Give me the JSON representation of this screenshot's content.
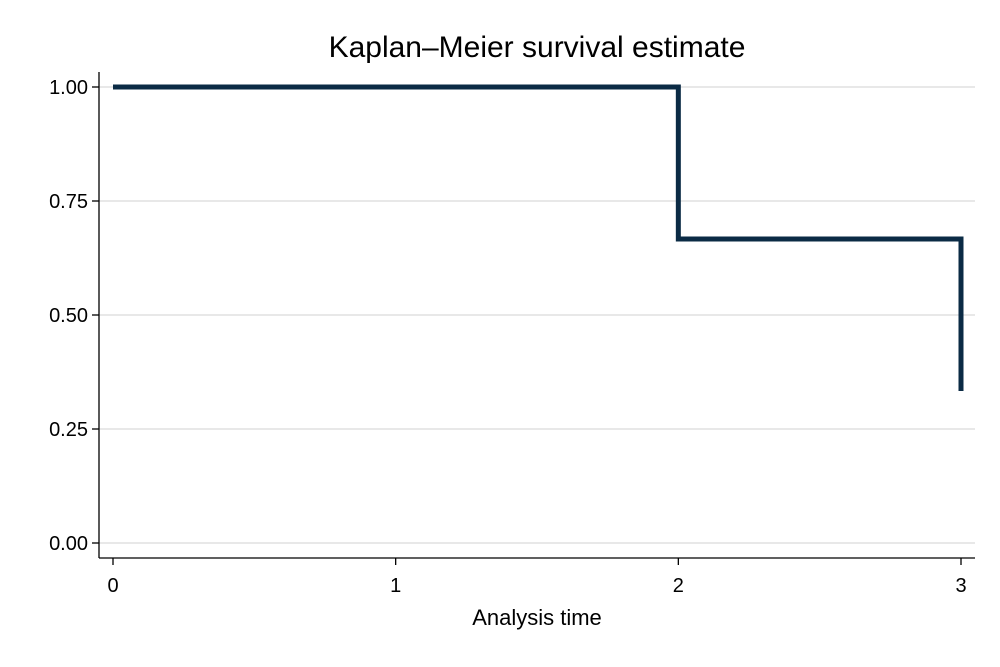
{
  "chart_data": {
    "type": "line",
    "subtype": "step",
    "title": "Kaplan–Meier survival estimate",
    "xlabel": "Analysis time",
    "ylabel": "",
    "xlim": [
      0,
      3
    ],
    "ylim": [
      0,
      1
    ],
    "x_ticks": [
      0,
      1,
      2,
      3
    ],
    "x_tick_labels": [
      "0",
      "1",
      "2",
      "3"
    ],
    "y_ticks": [
      0,
      0.25,
      0.5,
      0.75,
      1
    ],
    "y_tick_labels": [
      "0.00",
      "0.25",
      "0.50",
      "0.75",
      "1.00"
    ],
    "grid": true,
    "legend": "none",
    "series": [
      {
        "x": [
          0,
          2,
          3
        ],
        "y": [
          1.0,
          0.6667,
          0.3333
        ],
        "color": "#0b2b45"
      }
    ]
  }
}
